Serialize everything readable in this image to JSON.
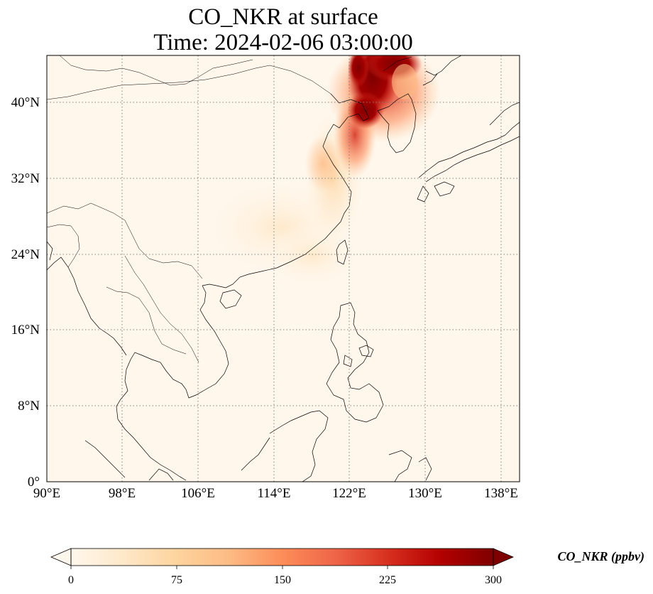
{
  "title": {
    "line1": "CO_NKR at surface",
    "line2": "Time: 2024-02-06 03:00:00"
  },
  "map": {
    "projection": "PlateCarree",
    "lon_range": [
      90,
      139
    ],
    "lat_range": [
      0,
      45
    ],
    "lon_ticks": [
      90,
      98,
      106,
      114,
      122,
      130,
      138
    ],
    "lat_ticks": [
      0,
      8,
      16,
      24,
      32,
      40
    ],
    "lon_tick_labels": [
      "90°E",
      "98°E",
      "106°E",
      "114°E",
      "122°E",
      "130°E",
      "138°E"
    ],
    "lat_tick_labels": [
      "0°",
      "8°N",
      "16°N",
      "24°N",
      "32°N",
      "40°N"
    ],
    "gridlines": "dotted"
  },
  "colorbar": {
    "label": "CO_NKR (ppbv)",
    "ticks": [
      0,
      75,
      150,
      225,
      300
    ],
    "tick_labels": [
      "0",
      "75",
      "150",
      "225",
      "300"
    ],
    "range": [
      0,
      300
    ],
    "extend": "both",
    "colormap": "OrRd",
    "colors": [
      "#fff7ec",
      "#fee8c8",
      "#fdd49e",
      "#fdbb84",
      "#fc8d59",
      "#ef6548",
      "#d7301f",
      "#b30000",
      "#7f0000"
    ]
  }
}
